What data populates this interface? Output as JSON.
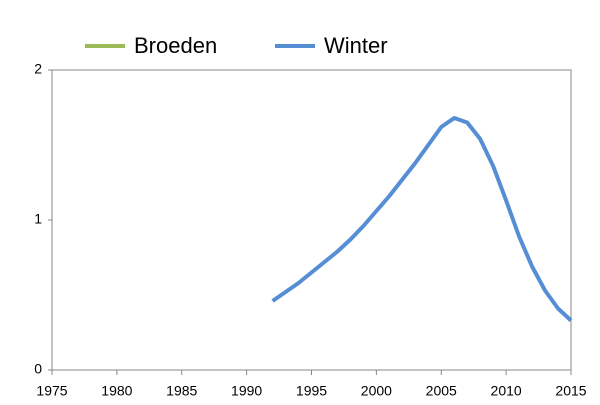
{
  "chart_data": {
    "type": "line",
    "x": [
      1992,
      1993,
      1994,
      1995,
      1996,
      1997,
      1998,
      1999,
      2000,
      2001,
      2002,
      2003,
      2004,
      2005,
      2006,
      2007,
      2008,
      2009,
      2010,
      2011,
      2012,
      2013,
      2014,
      2015
    ],
    "series": [
      {
        "name": "Broeden",
        "color": "#9bbb59",
        "values": [
          null,
          null,
          null,
          null,
          null,
          null,
          null,
          null,
          null,
          null,
          null,
          null,
          null,
          null,
          null,
          null,
          null,
          null,
          null,
          null,
          null,
          null,
          null,
          null
        ]
      },
      {
        "name": "Winter",
        "color": "#558ed5",
        "values": [
          0.46,
          0.52,
          0.58,
          0.65,
          0.72,
          0.79,
          0.87,
          0.96,
          1.06,
          1.16,
          1.27,
          1.38,
          1.5,
          1.62,
          1.68,
          1.65,
          1.54,
          1.36,
          1.13,
          0.89,
          0.69,
          0.53,
          0.41,
          0.33
        ]
      }
    ],
    "xlim": [
      1975,
      2015
    ],
    "xticks": [
      1975,
      1980,
      1985,
      1990,
      1995,
      2000,
      2005,
      2010,
      2015
    ],
    "ylim": [
      0,
      2
    ],
    "yticks": [
      0,
      1,
      2
    ],
    "grid": false,
    "legend": "top"
  }
}
